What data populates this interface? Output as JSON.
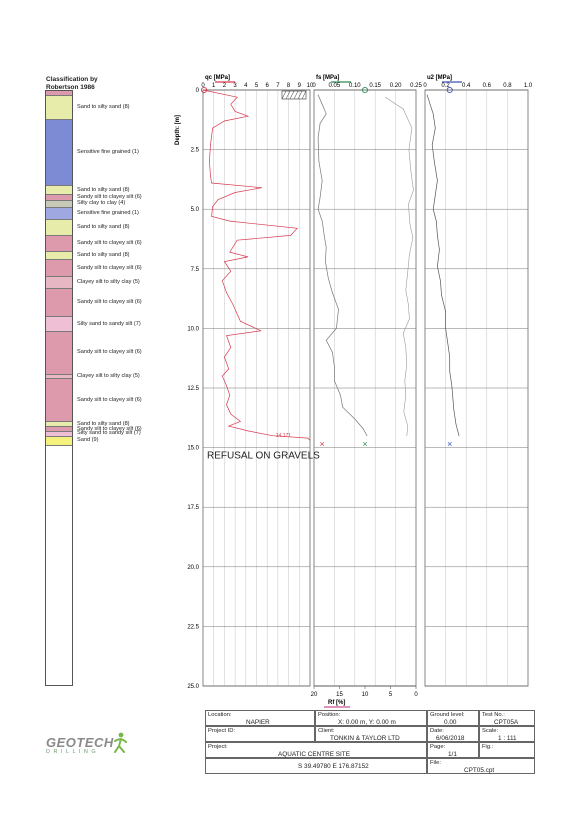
{
  "classification": {
    "title_line1": "Classification by",
    "title_line2": "Robertson 1986",
    "layers": [
      {
        "top": 0.0,
        "bottom": 0.2,
        "color": "#dd9aad",
        "label": ""
      },
      {
        "top": 0.2,
        "bottom": 1.2,
        "color": "#e8ecab",
        "label": "Sand to silty sand (8)"
      },
      {
        "top": 1.2,
        "bottom": 4.0,
        "color": "#7d8bd4",
        "label": "Sensitive fine grained (1)"
      },
      {
        "top": 4.0,
        "bottom": 4.35,
        "color": "#e8ecab",
        "label": "Sand to silty sand (8)"
      },
      {
        "top": 4.35,
        "bottom": 4.6,
        "color": "#dd9aad",
        "label": "Sandy silt to clayey silt (6)"
      },
      {
        "top": 4.6,
        "bottom": 4.9,
        "color": "#c9c9b7",
        "label": "Silty clay to clay (4)"
      },
      {
        "top": 4.9,
        "bottom": 5.4,
        "color": "#9fa8e0",
        "label": "Sensitive fine grained (1)"
      },
      {
        "top": 5.4,
        "bottom": 6.1,
        "color": "#e8ecab",
        "label": "Sand to silty sand (8)"
      },
      {
        "top": 6.1,
        "bottom": 6.75,
        "color": "#dd9aad",
        "label": "Sandy silt to clayey silt (6)"
      },
      {
        "top": 6.75,
        "bottom": 7.1,
        "color": "#e8ecab",
        "label": "Sand to silty sand (8)"
      },
      {
        "top": 7.1,
        "bottom": 7.8,
        "color": "#dd9aad",
        "label": "Sandy silt to clayey silt (6)"
      },
      {
        "top": 7.8,
        "bottom": 8.3,
        "color": "#e7b7c3",
        "label": "Clayey silt to silty clay (5)"
      },
      {
        "top": 8.3,
        "bottom": 9.5,
        "color": "#dd9aad",
        "label": "Sandy silt to clayey silt (6)"
      },
      {
        "top": 9.5,
        "bottom": 10.1,
        "color": "#efbfd6",
        "label": "Silty sand to sandy silt (7)"
      },
      {
        "top": 10.1,
        "bottom": 11.9,
        "color": "#dd9aad",
        "label": "Sandy silt to clayey silt (6)"
      },
      {
        "top": 11.9,
        "bottom": 12.1,
        "color": "#e7b7c3",
        "label": "Clayey silt to silty clay (5)"
      },
      {
        "top": 12.1,
        "bottom": 13.9,
        "color": "#dd9aad",
        "label": "Sandy silt to clayey silt (6)"
      },
      {
        "top": 13.9,
        "bottom": 14.1,
        "color": "#e8ecab",
        "label": "Sand to silty sand (8)"
      },
      {
        "top": 14.1,
        "bottom": 14.3,
        "color": "#dd9aad",
        "label": "Sandy silt to clayey silt (6)"
      },
      {
        "top": 14.3,
        "bottom": 14.5,
        "color": "#efbfd6",
        "label": "Silty sand to sandy silt (7)"
      },
      {
        "top": 14.5,
        "bottom": 14.9,
        "color": "#f4f27c",
        "label": "Sand (9)"
      },
      {
        "top": 14.9,
        "bottom": 25.0,
        "color": "#ffffff",
        "label": ""
      }
    ]
  },
  "chart_data": {
    "type": "line",
    "ylabel": "Depth: [m]",
    "ylim": [
      0,
      25
    ],
    "yticks": [
      "0",
      "2.5",
      "5.0",
      "7.5",
      "10.0",
      "12.5",
      "15.0",
      "17.5",
      "20.0",
      "22.5",
      "25.0"
    ],
    "panels": [
      {
        "label": "qc [MPa]",
        "xlim": [
          0,
          10
        ],
        "xticks": [
          "0",
          "1",
          "2",
          "3",
          "4",
          "5",
          "6",
          "7",
          "8",
          "9",
          "10"
        ],
        "color": "#d8394f",
        "series_name": "qc",
        "points": [
          [
            0,
            0.0
          ],
          [
            3.2,
            0.3
          ],
          [
            2.6,
            0.6
          ],
          [
            3.0,
            0.9
          ],
          [
            4.2,
            1.1
          ],
          [
            2.0,
            1.3
          ],
          [
            0.9,
            1.6
          ],
          [
            0.7,
            2.3
          ],
          [
            0.6,
            3.0
          ],
          [
            0.7,
            3.6
          ],
          [
            0.8,
            3.9
          ],
          [
            5.5,
            4.1
          ],
          [
            3.0,
            4.3
          ],
          [
            1.4,
            4.6
          ],
          [
            0.9,
            4.9
          ],
          [
            0.8,
            5.3
          ],
          [
            2.5,
            5.5
          ],
          [
            8.8,
            5.8
          ],
          [
            8.2,
            6.1
          ],
          [
            3.2,
            6.3
          ],
          [
            2.5,
            6.8
          ],
          [
            4.2,
            7.0
          ],
          [
            2.0,
            7.2
          ],
          [
            2.6,
            7.6
          ],
          [
            1.8,
            8.0
          ],
          [
            2.2,
            8.5
          ],
          [
            2.8,
            9.0
          ],
          [
            3.2,
            9.4
          ],
          [
            3.5,
            9.7
          ],
          [
            5.4,
            10.1
          ],
          [
            2.2,
            10.3
          ],
          [
            2.6,
            10.8
          ],
          [
            2.0,
            11.2
          ],
          [
            2.4,
            11.7
          ],
          [
            1.8,
            12.0
          ],
          [
            2.2,
            12.4
          ],
          [
            2.5,
            12.8
          ],
          [
            2.2,
            13.2
          ],
          [
            2.6,
            13.6
          ],
          [
            3.5,
            13.9
          ],
          [
            2.4,
            14.1
          ],
          [
            4.2,
            14.3
          ],
          [
            6.5,
            14.5
          ],
          [
            9.8,
            14.6
          ],
          [
            10.0,
            14.7
          ]
        ],
        "annotations": [
          {
            "text": "14.171",
            "x": 6.8,
            "y": 14.55
          }
        ],
        "end_marker": {
          "x": 0,
          "y": 14.85,
          "symbol": "×"
        }
      },
      {
        "label": "fs [MPa]",
        "xlim": [
          0,
          0.25
        ],
        "xticks": [
          "0",
          "0.05",
          "0.10",
          "0.15",
          "0.20",
          "0.25"
        ],
        "color": "#777777",
        "series_name": "fs",
        "points": [
          [
            0.01,
            0.2
          ],
          [
            0.02,
            0.6
          ],
          [
            0.03,
            1.0
          ],
          [
            0.015,
            1.4
          ],
          [
            0.01,
            2.0
          ],
          [
            0.012,
            3.0
          ],
          [
            0.02,
            3.8
          ],
          [
            0.015,
            4.5
          ],
          [
            0.01,
            5.0
          ],
          [
            0.02,
            5.5
          ],
          [
            0.025,
            6.1
          ],
          [
            0.03,
            6.6
          ],
          [
            0.028,
            7.2
          ],
          [
            0.035,
            7.9
          ],
          [
            0.045,
            8.5
          ],
          [
            0.06,
            9.2
          ],
          [
            0.055,
            10.0
          ],
          [
            0.03,
            10.5
          ],
          [
            0.045,
            11.0
          ],
          [
            0.05,
            11.6
          ],
          [
            0.05,
            12.2
          ],
          [
            0.065,
            12.8
          ],
          [
            0.07,
            13.3
          ],
          [
            0.1,
            13.8
          ],
          [
            0.12,
            14.2
          ],
          [
            0.13,
            14.5
          ]
        ],
        "end_marker": {
          "x": 0.12,
          "y": 14.85,
          "symbol": "×"
        }
      },
      {
        "label": "u2 [MPa]",
        "xlim": [
          0,
          1.0
        ],
        "xticks": [
          "0",
          "0.2",
          "0.4",
          "0.6",
          "0.8",
          "1.0"
        ],
        "color": "#555555",
        "series_name": "u2",
        "points": [
          [
            0.02,
            0.2
          ],
          [
            0.05,
            0.6
          ],
          [
            0.08,
            1.0
          ],
          [
            0.1,
            1.6
          ],
          [
            0.07,
            2.3
          ],
          [
            0.09,
            3.0
          ],
          [
            0.12,
            3.8
          ],
          [
            0.1,
            4.4
          ],
          [
            0.08,
            5.0
          ],
          [
            0.11,
            5.5
          ],
          [
            0.12,
            6.1
          ],
          [
            0.14,
            6.7
          ],
          [
            0.12,
            7.4
          ],
          [
            0.15,
            8.0
          ],
          [
            0.16,
            8.6
          ],
          [
            0.2,
            9.3
          ],
          [
            0.2,
            10.0
          ],
          [
            0.22,
            10.6
          ],
          [
            0.24,
            11.2
          ],
          [
            0.24,
            11.8
          ],
          [
            0.26,
            12.4
          ],
          [
            0.27,
            12.9
          ],
          [
            0.28,
            13.4
          ],
          [
            0.3,
            14.0
          ],
          [
            0.33,
            14.5
          ]
        ],
        "end_marker": {
          "x": 0.3,
          "y": 14.85,
          "symbol": "×"
        }
      },
      {
        "label": "Rf [%]",
        "xlim": [
          20,
          0
        ],
        "xticks": [
          "20",
          "15",
          "10",
          "5",
          "0"
        ],
        "color": "#2e8b57",
        "series_name": "Rf",
        "points": [
          [
            6.0,
            0.3
          ],
          [
            2.5,
            0.8
          ],
          [
            0.8,
            1.6
          ],
          [
            1.4,
            2.5
          ],
          [
            1.0,
            3.4
          ],
          [
            0.5,
            4.2
          ],
          [
            1.5,
            4.8
          ],
          [
            1.2,
            5.6
          ],
          [
            0.6,
            6.2
          ],
          [
            1.3,
            6.9
          ],
          [
            1.6,
            7.6
          ],
          [
            2.0,
            8.4
          ],
          [
            1.5,
            9.0
          ],
          [
            1.3,
            9.6
          ],
          [
            2.5,
            10.2
          ],
          [
            2.0,
            10.8
          ],
          [
            1.8,
            11.5
          ],
          [
            2.2,
            12.2
          ],
          [
            2.0,
            12.8
          ],
          [
            2.4,
            13.5
          ],
          [
            1.6,
            14.1
          ],
          [
            1.8,
            14.5
          ]
        ]
      }
    ],
    "note": "REFUSAL ON GRAVELS",
    "top_markers": [
      {
        "panel": 0,
        "x": 0.1,
        "symbol": "o",
        "color": "#d8394f"
      },
      {
        "panel": 1,
        "x": 0.125,
        "symbol": "o",
        "color": "#2e8b57"
      },
      {
        "panel": 2,
        "x": 0.24,
        "symbol": "o",
        "color": "#3b55b5"
      }
    ],
    "bottom_markers": [
      {
        "panel": 1,
        "x": 0.02,
        "color": "#d8394f"
      },
      {
        "panel": 1,
        "x": 0.125,
        "color": "#2e8b57"
      },
      {
        "panel": 2,
        "x": 0.24,
        "color": "#3b55b5"
      }
    ]
  },
  "title_block": {
    "location_key": "Location:",
    "location_val": "NAPIER",
    "position_key": "Position:",
    "position_val": "X: 0.00 m, Y: 0.00 m",
    "ground_key": "Ground level:",
    "ground_val": "0.00",
    "test_key": "Test No.:",
    "test_val": "CPT05A",
    "project_id_key": "Project ID:",
    "client_key": "Client:",
    "client_val": "TONKIN & TAYLOR LTD",
    "date_key": "Date:",
    "date_val": "6/06/2018",
    "scale_key": "Scale:",
    "scale_val": "1 : 111",
    "project_key": "Project:",
    "project_val": "AQUATIC CENTRE SITE",
    "page_key": "Page:",
    "page_val": "1/1",
    "fig_key": "Fig.:",
    "coords_val": "S 39.49780 E 176.87152",
    "file_key": "File:",
    "file_val": "CPT05.cpt"
  },
  "logo": {
    "brand": "GEOTECH",
    "sub": "D R I L L I N G"
  }
}
